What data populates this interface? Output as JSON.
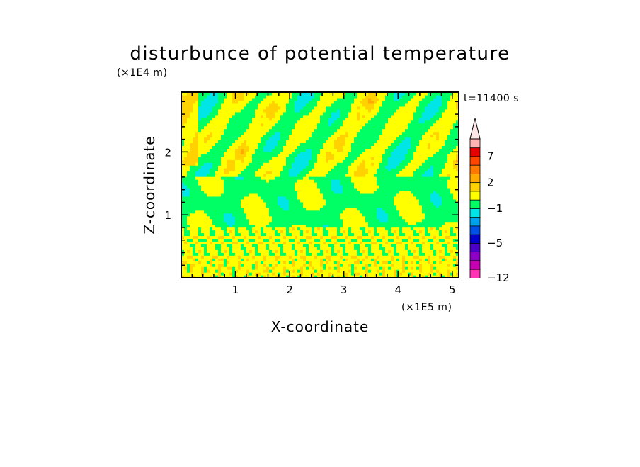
{
  "chart_data": {
    "type": "heatmap",
    "title": "disturbunce of potential temperature",
    "xlabel": "X-coordinate",
    "ylabel": "Z-coordinate",
    "x_unit": "(×1E5 m)",
    "y_unit": "(×1E4 m)",
    "time_label": "t=11400 s",
    "xlim": [
      0,
      5.12
    ],
    "ylim": [
      0,
      2.95
    ],
    "x_ticks": [
      1,
      2,
      3,
      4,
      5
    ],
    "y_ticks": [
      1,
      2
    ],
    "colorbar": {
      "levels": [
        -12,
        -10,
        -8,
        -6,
        -5,
        -4,
        -3,
        -2,
        -1,
        0,
        1,
        2,
        3,
        5,
        7,
        9,
        11
      ],
      "labels": [
        -12,
        -5,
        -1,
        2,
        7
      ],
      "colors": [
        "#ff33b4",
        "#c800b4",
        "#8c00c8",
        "#4b00c8",
        "#0000c8",
        "#0050e6",
        "#00a0f0",
        "#00e6e6",
        "#00ff64",
        "#ffff00",
        "#ffd200",
        "#ffaa00",
        "#ff7800",
        "#ff4600",
        "#e60000",
        "#ffb4b4"
      ],
      "over_color": "#ffe6e6",
      "extend": "max"
    },
    "grid": false,
    "regions": [
      {
        "zmin": 0.0,
        "zmax": 0.35,
        "dominant": "yellow band with orange and green speckles"
      },
      {
        "zmin": 0.35,
        "zmax": 0.8,
        "dominant": "yellow with thin green streaks"
      },
      {
        "zmin": 0.8,
        "zmax": 1.6,
        "dominant": "green with yellow blobs"
      },
      {
        "zmin": 1.6,
        "zmax": 2.95,
        "dominant": "alternating green and yellow tilted streaks, orange cores, cyan spots"
      }
    ]
  }
}
